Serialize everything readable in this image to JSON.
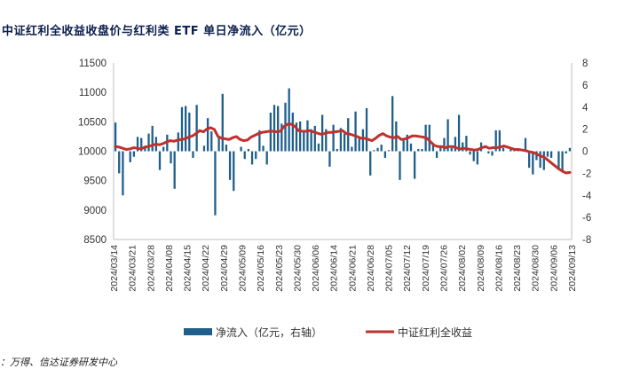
{
  "title": "中证红利全收益收盘价与红利类 ETF 单日净流入（亿元）",
  "source": "：万得、信达证券研发中心",
  "chart_data": {
    "type": "bar+line",
    "title": "中证红利全收益收盘价与红利类 ETF 单日净流入（亿元）",
    "left_axis": {
      "min": 8500,
      "max": 11500,
      "ticks": [
        8500,
        9000,
        9500,
        10000,
        10500,
        11000,
        11500
      ]
    },
    "right_axis": {
      "min": -8,
      "max": 8,
      "ticks": [
        -8,
        -6,
        -4,
        -2,
        0,
        2,
        4,
        6,
        8
      ]
    },
    "x_tick_labels": [
      "2024/03/14",
      "2024/03/21",
      "2024/03/28",
      "2024/04/08",
      "2024/04/15",
      "2024/04/22",
      "2024/04/29",
      "2024/05/09",
      "2024/05/16",
      "2024/05/23",
      "2024/05/30",
      "2024/06/06",
      "2024/06/14",
      "2024/06/21",
      "2024/06/28",
      "2024/07/05",
      "2024/07/12",
      "2024/07/19",
      "2024/07/26",
      "2024/08/02",
      "2024/08/09",
      "2024/08/16",
      "2024/08/23",
      "2024/08/30",
      "2024/09/06",
      "2024/09/13"
    ],
    "series": [
      {
        "name": "净流入（亿元，右轴）",
        "type": "bar",
        "axis": "right",
        "color": "#1f5f8b",
        "values": [
          2.6,
          -2.0,
          -4.0,
          0.0,
          -1.0,
          -0.5,
          1.3,
          1.2,
          0.5,
          1.6,
          2.3,
          1.3,
          -1.7,
          0.4,
          1.5,
          -1.1,
          -3.4,
          1.7,
          4.0,
          4.1,
          3.5,
          -0.6,
          4.2,
          0.0,
          0.5,
          3.0,
          1.8,
          -5.8,
          1.4,
          5.2,
          0.6,
          -2.6,
          -3.6,
          0.0,
          0.4,
          -0.7,
          0.2,
          -1.2,
          -0.7,
          1.9,
          0.5,
          -1.2,
          3.5,
          4.2,
          4.1,
          2.5,
          4.4,
          5.7,
          3.5,
          2.6,
          2.7,
          1.8,
          2.8,
          2.0,
          2.3,
          0.7,
          3.3,
          2.0,
          -1.4,
          2.4,
          0.2,
          2.1,
          1.6,
          3.0,
          0.4,
          3.6,
          1.3,
          2.0,
          3.9,
          -2.2,
          0.1,
          0.3,
          0.6,
          -0.6,
          0.1,
          5.0,
          2.7,
          -2.6,
          1.0,
          1.5,
          0.7,
          -2.5,
          0.2,
          0.2,
          2.4,
          2.4,
          0.6,
          -0.6,
          0.4,
          1.2,
          2.9,
          0.3,
          1.3,
          3.3,
          0.8,
          1.4,
          -0.3,
          -0.9,
          -1.2,
          0.8,
          0.0,
          -0.2,
          -0.4,
          1.9,
          1.9,
          0.3,
          0.0,
          0.2,
          0.1,
          0.1,
          0.1,
          1.2,
          -1.5,
          -2.1,
          -0.8,
          -1.5,
          -1.7,
          -0.5,
          -0.6,
          0.0,
          -1.5,
          -1.9,
          -0.2,
          0.3
        ]
      },
      {
        "name": "中证红利全收益",
        "type": "line",
        "axis": "left",
        "color": "#c0302c",
        "values": [
          10080,
          10070,
          10050,
          10030,
          10040,
          10060,
          10050,
          10040,
          10070,
          10080,
          10100,
          10120,
          10110,
          10130,
          10160,
          10180,
          10170,
          10190,
          10200,
          10210,
          10240,
          10260,
          10300,
          10350,
          10330,
          10380,
          10400,
          10370,
          10250,
          10220,
          10210,
          10200,
          10230,
          10250,
          10200,
          10180,
          10190,
          10240,
          10270,
          10300,
          10320,
          10330,
          10340,
          10340,
          10330,
          10340,
          10420,
          10460,
          10460,
          10420,
          10350,
          10340,
          10340,
          10350,
          10330,
          10310,
          10290,
          10300,
          10320,
          10320,
          10330,
          10340,
          10350,
          10300,
          10290,
          10270,
          10250,
          10220,
          10220,
          10200,
          10180,
          10220,
          10270,
          10300,
          10260,
          10240,
          10230,
          10250,
          10200,
          10210,
          10230,
          10260,
          10260,
          10250,
          10240,
          10220,
          10160,
          10100,
          10080,
          10080,
          10060,
          10080,
          10080,
          10060,
          10040,
          10050,
          10040,
          10030,
          10020,
          10030,
          10060,
          10080,
          10050,
          10060,
          10060,
          10070,
          10090,
          10070,
          10050,
          10030,
          10030,
          10020,
          10010,
          9990,
          9980,
          9950,
          9920,
          9900,
          9850,
          9800,
          9750,
          9700,
          9660,
          9630,
          9640
        ]
      }
    ]
  }
}
